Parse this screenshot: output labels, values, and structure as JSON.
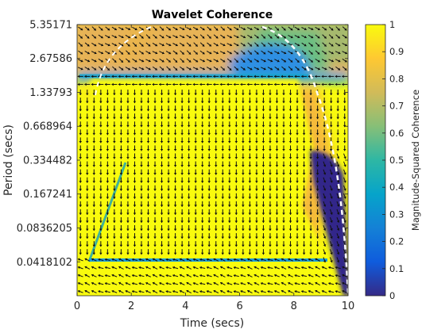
{
  "chart_data": {
    "type": "heatmap",
    "title": "Wavelet Coherence",
    "xlabel": "Time (secs)",
    "ylabel": "Period (secs)",
    "xlim": [
      0,
      10
    ],
    "xticks": [
      0,
      2,
      4,
      6,
      8,
      10
    ],
    "yscale": "log2",
    "yticks": [
      "5.35171",
      "2.67586",
      "1.33793",
      "0.668964",
      "0.334482",
      "0.167241",
      "0.0836205",
      "0.0418102"
    ],
    "colorbar": {
      "label": "Magnitude-Squared Coherence",
      "ticks": [
        0,
        0.1,
        0.2,
        0.3,
        0.4,
        0.5,
        0.6,
        0.7,
        0.8,
        0.9,
        1
      ],
      "colormap": "parula",
      "stops": [
        "#352a87",
        "#0f5cdd",
        "#1481d6",
        "#06a4ca",
        "#2eb7a4",
        "#87bf77",
        "#d1bb59",
        "#fec832",
        "#f9fb0e"
      ]
    },
    "regions": [
      {
        "name": "high coherence trapezoid",
        "period_range": [
          "0.0418102",
          "1.33793"
        ],
        "time_range": [
          0.5,
          9.0
        ],
        "coherence": 1.0
      },
      {
        "name": "upper band",
        "period_range": [
          "1.33793",
          "5.35171"
        ],
        "time_range": [
          0,
          10
        ],
        "coherence": 0.8
      },
      {
        "name": "low coherence wedge",
        "period_range": [
          "0.0418102",
          "0.334482"
        ],
        "time_range": [
          8.5,
          10
        ],
        "coherence": 0.05
      }
    ],
    "grid": false,
    "cone_of_influence": "dashed white"
  }
}
